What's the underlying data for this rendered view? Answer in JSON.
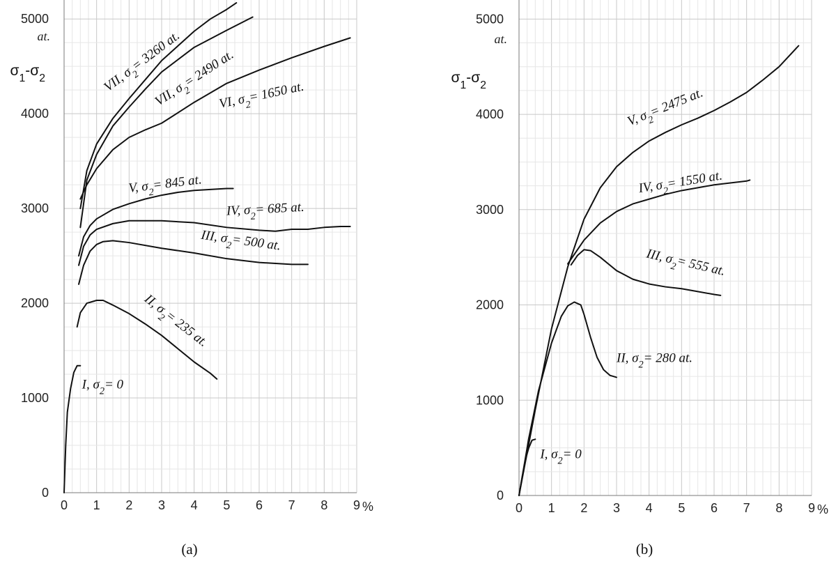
{
  "chart_data": [
    {
      "type": "line",
      "panel_label": "(a)",
      "ylabel": "σ₁-σ₂",
      "y_unit": "at.",
      "x_unit": "%",
      "xlim": [
        0,
        9
      ],
      "ylim": [
        0,
        5200
      ],
      "x_ticks": [
        "0",
        "1",
        "2",
        "3",
        "4",
        "5",
        "6",
        "7",
        "8",
        "9"
      ],
      "y_ticks": [
        "0",
        "1000",
        "2000",
        "3000",
        "4000",
        "5000"
      ],
      "grid": true,
      "series": [
        {
          "name": "I, σ₂= 0",
          "x": [
            0,
            0.05,
            0.1,
            0.2,
            0.3,
            0.4,
            0.5
          ],
          "y": [
            0,
            500,
            850,
            1100,
            1270,
            1340,
            1340
          ]
        },
        {
          "name": "II, σ₂= 235 at.",
          "x": [
            0.4,
            0.5,
            0.7,
            1.0,
            1.2,
            1.5,
            2.0,
            2.5,
            3.0,
            3.5,
            4.0,
            4.5,
            4.7
          ],
          "y": [
            1750,
            1900,
            2000,
            2030,
            2030,
            1980,
            1890,
            1780,
            1660,
            1520,
            1380,
            1260,
            1200
          ]
        },
        {
          "name": "III, σ₂= 500 at.",
          "x": [
            0.45,
            0.6,
            0.8,
            1.0,
            1.2,
            1.5,
            2.0,
            3.0,
            4.0,
            5.0,
            6.0,
            7.0,
            7.5
          ],
          "y": [
            2200,
            2400,
            2550,
            2620,
            2650,
            2660,
            2640,
            2580,
            2530,
            2470,
            2430,
            2410,
            2410
          ]
        },
        {
          "name": "IV, σ₂= 685 at.",
          "x": [
            0.45,
            0.6,
            0.8,
            1.0,
            1.5,
            2.0,
            2.5,
            3.0,
            4.0,
            5.0,
            6.0,
            6.5,
            7.0,
            7.5,
            8.0,
            8.5,
            8.8
          ],
          "y": [
            2400,
            2600,
            2720,
            2780,
            2840,
            2870,
            2870,
            2870,
            2850,
            2800,
            2770,
            2760,
            2780,
            2780,
            2800,
            2810,
            2810
          ]
        },
        {
          "name": "V, σ₂= 845 at.",
          "x": [
            0.45,
            0.6,
            0.8,
            1.0,
            1.5,
            2.0,
            2.5,
            3.0,
            3.5,
            4.0,
            4.5,
            5.0,
            5.2
          ],
          "y": [
            2500,
            2700,
            2820,
            2890,
            2990,
            3050,
            3100,
            3140,
            3170,
            3190,
            3200,
            3210,
            3210
          ]
        },
        {
          "name": "VI, σ₂= 1650 at.",
          "x": [
            0.5,
            0.7,
            1.0,
            1.5,
            2.0,
            2.5,
            3.0,
            4.0,
            5.0,
            6.0,
            7.0,
            8.0,
            8.8
          ],
          "y": [
            3100,
            3250,
            3420,
            3620,
            3750,
            3830,
            3900,
            4120,
            4320,
            4460,
            4590,
            4710,
            4800
          ]
        },
        {
          "name": "VII, σ₂= 2490 at.",
          "x": [
            0.5,
            0.7,
            1.0,
            1.5,
            2.0,
            2.5,
            3.0,
            4.0,
            5.0,
            5.8
          ],
          "y": [
            2800,
            3300,
            3570,
            3870,
            4070,
            4260,
            4440,
            4700,
            4880,
            5020
          ]
        },
        {
          "name": "VII, σ₂= 3260 at.",
          "x": [
            0.5,
            0.7,
            1.0,
            1.5,
            2.0,
            2.5,
            3.0,
            4.0,
            4.5,
            5.0,
            5.3
          ],
          "y": [
            3000,
            3400,
            3680,
            3950,
            4160,
            4360,
            4560,
            4870,
            5000,
            5100,
            5170
          ]
        }
      ],
      "annotations": [
        {
          "text": "I, σ₂= 0",
          "x": 0.55,
          "y": 1100,
          "angle": 0
        },
        {
          "text": "II, σ₂= 235 at.",
          "x": 2.45,
          "y": 2030,
          "angle": 38
        },
        {
          "text": "III, σ₂= 500 at.",
          "x": 4.2,
          "y": 2680,
          "angle": 8
        },
        {
          "text": "IV, σ₂= 685 at.",
          "x": 5.0,
          "y": 2930,
          "angle": -3
        },
        {
          "text": "V, σ₂= 845 at.",
          "x": 2.0,
          "y": 3170,
          "angle": -7
        },
        {
          "text": "VI, σ₂= 1650 at.",
          "x": 4.8,
          "y": 4060,
          "angle": -12
        },
        {
          "text": "VII, σ₂= 2490 at.",
          "x": 2.9,
          "y": 4080,
          "angle": -33
        },
        {
          "text": "VII, σ₂= 3260 at.",
          "x": 1.35,
          "y": 4230,
          "angle": -37
        }
      ]
    },
    {
      "type": "line",
      "panel_label": "(b)",
      "ylabel": "σ₁-σ₂",
      "y_unit": "at.",
      "x_unit": "%",
      "xlim": [
        0,
        9
      ],
      "ylim": [
        0,
        5200
      ],
      "x_ticks": [
        "0",
        "1",
        "2",
        "3",
        "4",
        "5",
        "6",
        "7",
        "8",
        "9"
      ],
      "y_ticks": [
        "0",
        "1000",
        "2000",
        "3000",
        "4000",
        "5000"
      ],
      "grid": true,
      "series": [
        {
          "name": "I, σ₂= 0",
          "x": [
            0,
            0.1,
            0.2,
            0.3,
            0.4,
            0.5
          ],
          "y": [
            0,
            200,
            380,
            500,
            580,
            590
          ]
        },
        {
          "name": "II, σ₂= 280 at.",
          "x": [
            0,
            0.3,
            0.6,
            1.0,
            1.3,
            1.5,
            1.7,
            1.9,
            2.0,
            2.2,
            2.4,
            2.6,
            2.8,
            3.0
          ],
          "y": [
            0,
            600,
            1100,
            1600,
            1880,
            1990,
            2030,
            2000,
            1900,
            1660,
            1450,
            1320,
            1260,
            1240
          ]
        },
        {
          "name": "III, σ₂= 555 at.",
          "x": [
            1.6,
            1.8,
            2.0,
            2.2,
            2.5,
            3.0,
            3.5,
            4.0,
            4.5,
            5.0,
            5.5,
            6.0,
            6.2
          ],
          "y": [
            2420,
            2520,
            2580,
            2570,
            2500,
            2360,
            2270,
            2220,
            2190,
            2170,
            2140,
            2110,
            2100
          ]
        },
        {
          "name": "IV, σ₂= 1550 at.",
          "x": [
            1.5,
            2.0,
            2.5,
            3.0,
            3.5,
            4.0,
            4.5,
            5.0,
            5.5,
            6.0,
            6.5,
            7.0,
            7.1
          ],
          "y": [
            2430,
            2680,
            2860,
            2980,
            3060,
            3110,
            3160,
            3200,
            3230,
            3260,
            3280,
            3300,
            3310
          ]
        },
        {
          "name": "V, σ₂= 2475 at.",
          "x": [
            0,
            0.5,
            1.0,
            1.5,
            2.0,
            2.5,
            3.0,
            3.5,
            4.0,
            4.5,
            5.0,
            5.5,
            6.0,
            6.5,
            7.0,
            7.5,
            8.0,
            8.6
          ],
          "y": [
            0,
            900,
            1750,
            2400,
            2900,
            3230,
            3450,
            3600,
            3720,
            3810,
            3890,
            3960,
            4040,
            4130,
            4230,
            4360,
            4500,
            4720
          ]
        }
      ],
      "annotations": [
        {
          "text": "I, σ₂= 0",
          "x": 0.65,
          "y": 390,
          "angle": 0
        },
        {
          "text": "II, σ₂= 280 at.",
          "x": 3.0,
          "y": 1400,
          "angle": 0
        },
        {
          "text": "III, σ₂= 555 at.",
          "x": 3.9,
          "y": 2500,
          "angle": 13
        },
        {
          "text": "IV, σ₂= 1550 at.",
          "x": 3.7,
          "y": 3180,
          "angle": -9
        },
        {
          "text": "V, σ₂= 2475 at.",
          "x": 3.4,
          "y": 3880,
          "angle": -22
        }
      ]
    }
  ]
}
